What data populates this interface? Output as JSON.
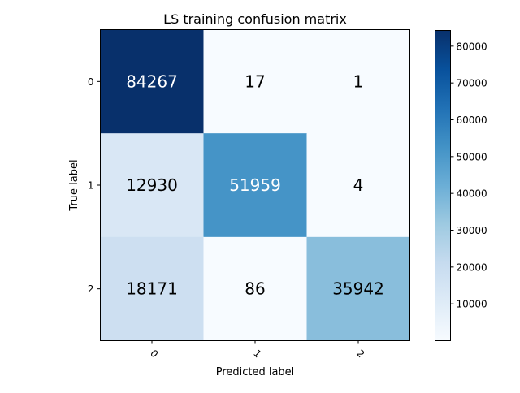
{
  "chart_data": {
    "type": "heatmap",
    "title": "LS training confusion matrix",
    "xlabel": "Predicted label",
    "ylabel": "True label",
    "x_categories": [
      "0",
      "1",
      "2"
    ],
    "y_categories": [
      "0",
      "1",
      "2"
    ],
    "values": [
      [
        84267,
        17,
        1
      ],
      [
        12930,
        51959,
        4
      ],
      [
        18171,
        86,
        35942
      ]
    ],
    "colormap": "Blues",
    "colormap_stops": [
      "#f7fbff",
      "#deebf7",
      "#c6dbef",
      "#9ecae1",
      "#6baed6",
      "#4292c6",
      "#2171b5",
      "#08519c",
      "#08306b"
    ],
    "color_range": [
      1,
      84267
    ],
    "colorbar_ticks": [
      10000,
      20000,
      30000,
      40000,
      50000,
      60000,
      70000,
      80000
    ],
    "colorbar_tick_labels": [
      "10000",
      "20000",
      "30000",
      "40000",
      "50000",
      "60000",
      "70000",
      "80000"
    ],
    "x_tick_rotation_deg": 45,
    "grid": false,
    "text_color_dark": "#000000",
    "text_color_light": "#ffffff"
  }
}
